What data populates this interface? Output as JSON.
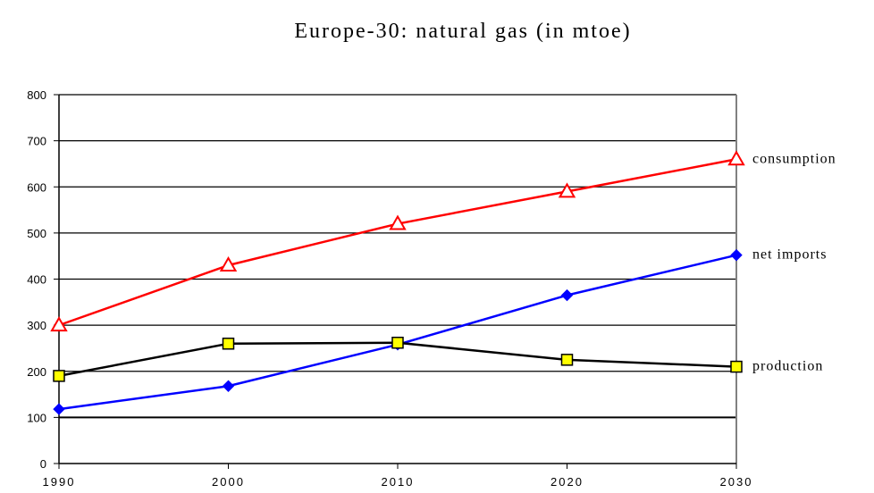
{
  "chart_data": {
    "type": "line",
    "title": "Europe-30:  natural gas (in mtoe)",
    "xlabel": "",
    "ylabel": "",
    "x": [
      1990,
      2000,
      2010,
      2020,
      2030
    ],
    "x_tick_labels": [
      "1990",
      "2000",
      "2010",
      "2020",
      "2030"
    ],
    "y_tick_labels": [
      "0",
      "100",
      "200",
      "300",
      "400",
      "500",
      "600",
      "700",
      "800"
    ],
    "ylim": [
      0,
      800
    ],
    "xlim": [
      1990,
      2030
    ],
    "grid": true,
    "legend": "inline labels at right end of each series",
    "series": [
      {
        "name": "consumption",
        "color": "#ff0000",
        "marker": "triangle-open",
        "values": [
          300,
          430,
          520,
          590,
          660
        ]
      },
      {
        "name": "net imports",
        "color": "#0000ff",
        "marker": "diamond-filled",
        "values": [
          118,
          168,
          258,
          365,
          452
        ]
      },
      {
        "name": "production",
        "color": "#000000",
        "marker": "square-yellow",
        "marker_fill": "#ffff00",
        "values": [
          190,
          260,
          262,
          225,
          210
        ]
      }
    ]
  }
}
